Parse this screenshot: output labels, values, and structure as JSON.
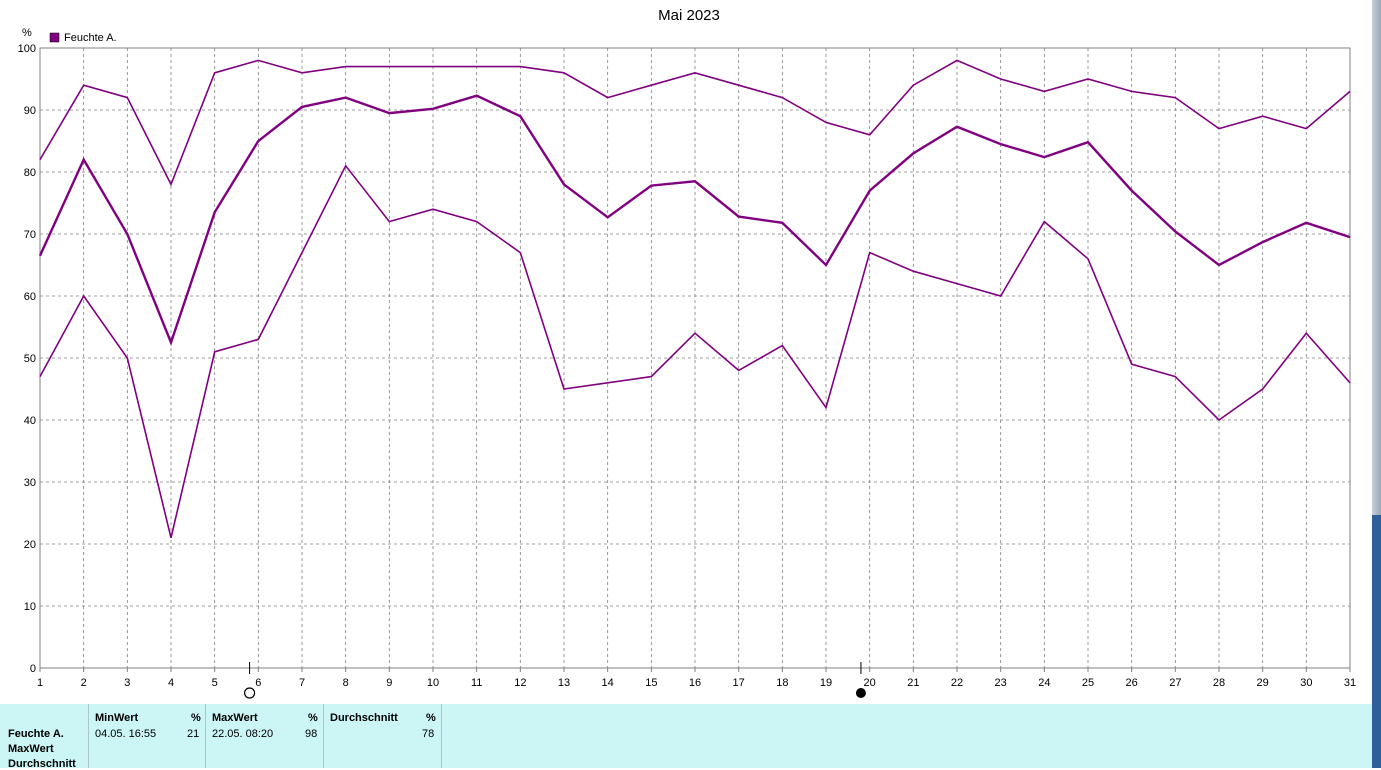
{
  "window": {
    "title": "Mai 2023"
  },
  "colors": {
    "series": "#800080",
    "grid": "#808080",
    "stats_bg": "#ccf5f5"
  },
  "icons": {
    "full_moon": "full-moon-icon",
    "new_moon": "new-moon-icon"
  },
  "chart_data": {
    "type": "line",
    "title": "Mai 2023",
    "ylabel": "%",
    "ylim": [
      0,
      100
    ],
    "yticks": [
      0,
      10,
      20,
      30,
      40,
      50,
      60,
      70,
      80,
      90,
      100
    ],
    "x": [
      1,
      2,
      3,
      4,
      5,
      6,
      7,
      8,
      9,
      10,
      11,
      12,
      13,
      14,
      15,
      16,
      17,
      18,
      19,
      20,
      21,
      22,
      23,
      24,
      25,
      26,
      27,
      28,
      29,
      30,
      31
    ],
    "grid": true,
    "legend": {
      "position": "top-left",
      "entries": [
        "Feuchte A."
      ]
    },
    "series": [
      {
        "name": "Feuchte A.",
        "role": "max",
        "values": [
          82,
          94,
          92,
          78,
          96,
          98,
          96,
          97,
          97,
          97,
          97,
          97,
          96,
          92,
          94,
          96,
          94,
          92,
          88,
          86,
          94,
          98,
          95,
          93,
          95,
          93,
          92,
          87,
          89,
          87,
          93
        ]
      },
      {
        "name": "Feuchte A.",
        "role": "avg",
        "values": [
          66.5,
          82,
          70,
          52.5,
          73.5,
          85,
          90.5,
          92,
          89.5,
          90.2,
          92.3,
          89,
          78,
          72.7,
          77.8,
          78.5,
          72.8,
          71.8,
          65,
          77,
          83,
          87.3,
          84.5,
          82.4,
          84.8,
          77,
          70.4,
          65,
          68.7,
          71.8,
          69.5
        ]
      },
      {
        "name": "Feuchte A.",
        "role": "min",
        "values": [
          47,
          60,
          50,
          21,
          51,
          53,
          67,
          81,
          72,
          74,
          72,
          67,
          45,
          46,
          47,
          54,
          48,
          52,
          42,
          67,
          64,
          62,
          60,
          72,
          66,
          49,
          47,
          40,
          45,
          54,
          46
        ]
      }
    ],
    "moon_phases": [
      {
        "day": 5.8,
        "phase": "full"
      },
      {
        "day": 19.8,
        "phase": "new"
      }
    ]
  },
  "stats": {
    "row_labels": [
      "Feuchte A.",
      "MaxWert",
      "Durchschnitt"
    ],
    "columns": [
      {
        "header": "MinWert",
        "unit": "%",
        "time": "04.05.  16:55",
        "value": "21"
      },
      {
        "header": "MaxWert",
        "unit": "%",
        "time": "22.05.  08:20",
        "value": "98"
      },
      {
        "header": "Durchschnitt",
        "unit": "%",
        "time": "",
        "value": "78"
      }
    ]
  }
}
